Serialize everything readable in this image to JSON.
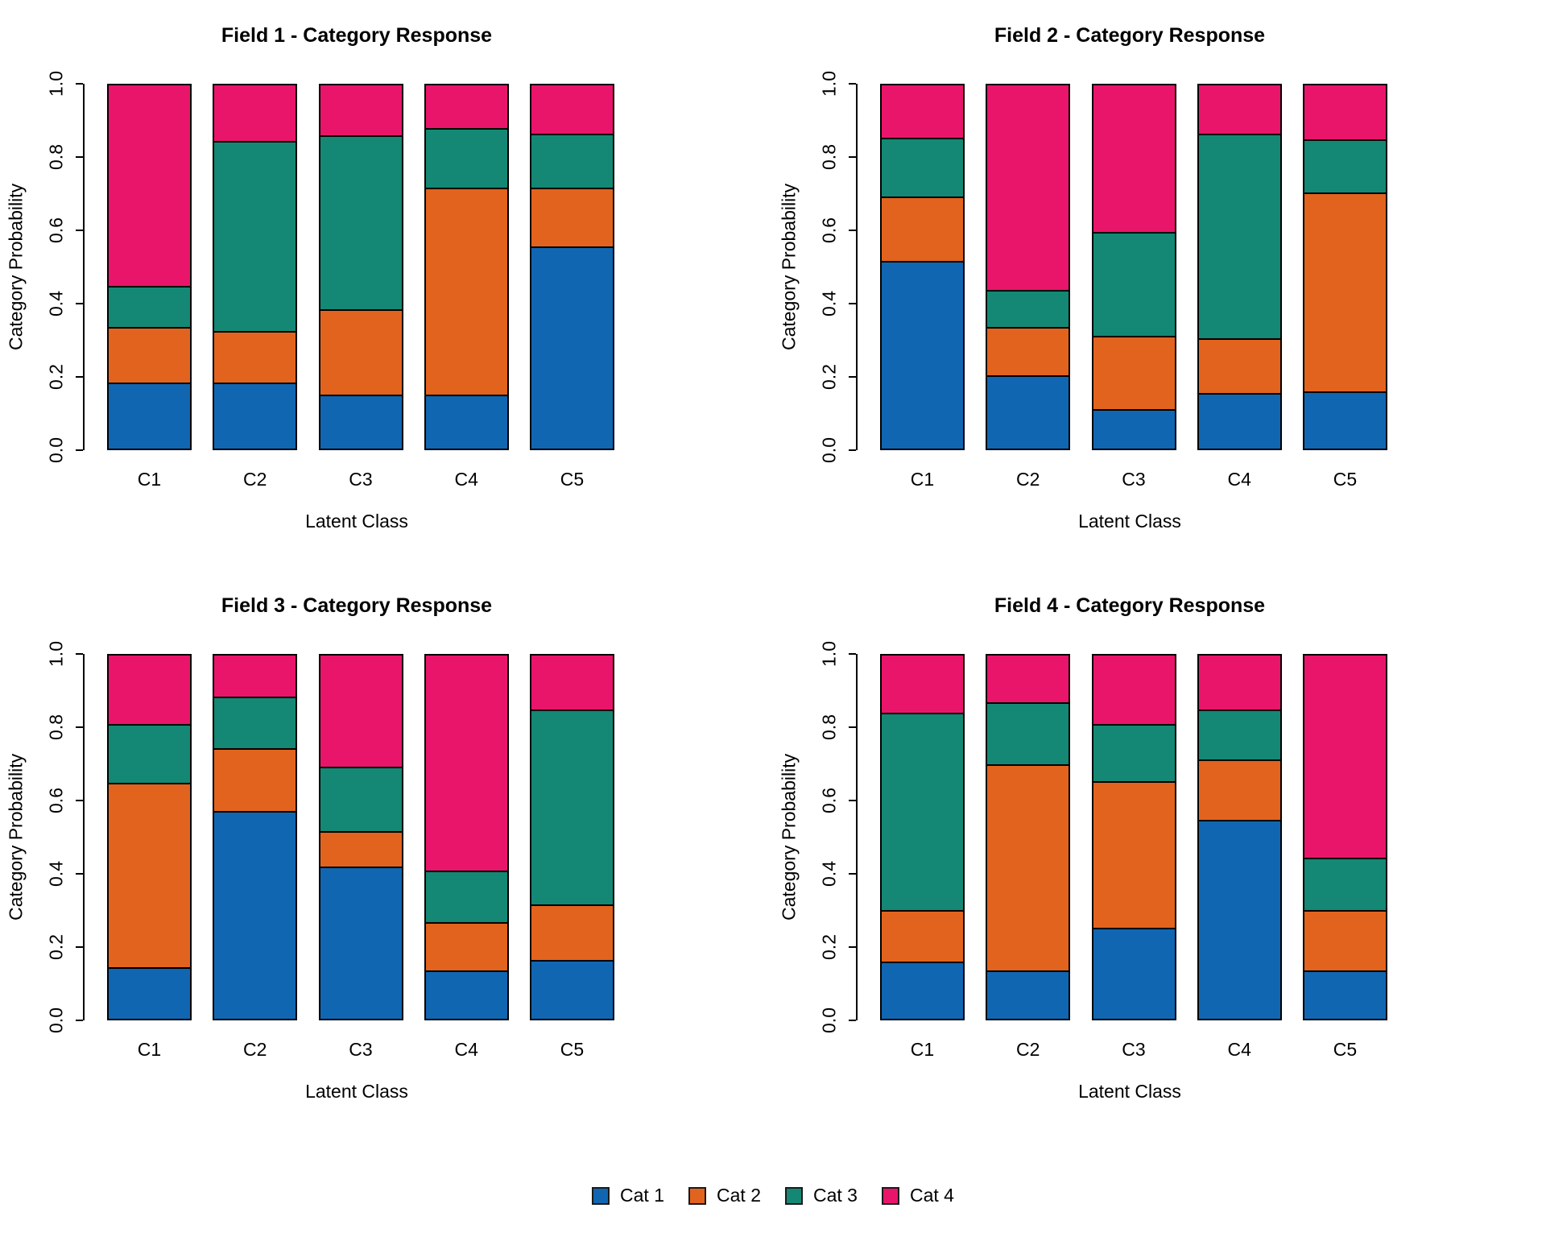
{
  "page": {
    "background": "#FFFFFF"
  },
  "palette": {
    "cat1": "#1166B1",
    "cat2": "#E2631E",
    "cat3": "#148874",
    "cat4": "#E9156B",
    "bar_border": "#000000"
  },
  "legend": {
    "items": [
      {
        "label": "Cat 1",
        "color": "#1166B1"
      },
      {
        "label": "Cat 2",
        "color": "#E2631E"
      },
      {
        "label": "Cat 3",
        "color": "#148874"
      },
      {
        "label": "Cat 4",
        "color": "#E9156B"
      }
    ]
  },
  "chart_data": [
    {
      "type": "bar",
      "stacked": true,
      "title": "Field 1 - Category Response",
      "xlabel": "Latent Class",
      "ylabel": "Category Probability",
      "ylim": [
        0,
        1
      ],
      "y_ticks": [
        "0.0",
        "0.2",
        "0.4",
        "0.6",
        "0.8",
        "1.0"
      ],
      "grid": false,
      "categories": [
        "C1",
        "C2",
        "C3",
        "C4",
        "C5"
      ],
      "series": [
        {
          "name": "Cat 1",
          "color": "#1166B1",
          "values": [
            0.18,
            0.18,
            0.145,
            0.145,
            0.56
          ]
        },
        {
          "name": "Cat 2",
          "color": "#E2631E",
          "values": [
            0.15,
            0.14,
            0.235,
            0.575,
            0.16
          ]
        },
        {
          "name": "Cat 3",
          "color": "#148874",
          "values": [
            0.11,
            0.525,
            0.48,
            0.16,
            0.145
          ]
        },
        {
          "name": "Cat 4",
          "color": "#E9156B",
          "values": [
            0.56,
            0.155,
            0.14,
            0.12,
            0.135
          ]
        }
      ]
    },
    {
      "type": "bar",
      "stacked": true,
      "title": "Field 2 - Category Response",
      "xlabel": "Latent Class",
      "ylabel": "Category Probability",
      "ylim": [
        0,
        1
      ],
      "y_ticks": [
        "0.0",
        "0.2",
        "0.4",
        "0.6",
        "0.8",
        "1.0"
      ],
      "grid": false,
      "categories": [
        "C1",
        "C2",
        "C3",
        "C4",
        "C5"
      ],
      "series": [
        {
          "name": "Cat 1",
          "color": "#1166B1",
          "values": [
            0.52,
            0.2,
            0.105,
            0.15,
            0.155
          ]
        },
        {
          "name": "Cat 2",
          "color": "#E2631E",
          "values": [
            0.175,
            0.13,
            0.2,
            0.15,
            0.55
          ]
        },
        {
          "name": "Cat 3",
          "color": "#148874",
          "values": [
            0.16,
            0.1,
            0.285,
            0.565,
            0.145
          ]
        },
        {
          "name": "Cat 4",
          "color": "#E9156B",
          "values": [
            0.145,
            0.57,
            0.41,
            0.135,
            0.15
          ]
        }
      ]
    },
    {
      "type": "bar",
      "stacked": true,
      "title": "Field 3 - Category Response",
      "xlabel": "Latent Class",
      "ylabel": "Category Probability",
      "ylim": [
        0,
        1
      ],
      "y_ticks": [
        "0.0",
        "0.2",
        "0.4",
        "0.6",
        "0.8",
        "1.0"
      ],
      "grid": false,
      "categories": [
        "C1",
        "C2",
        "C3",
        "C4",
        "C5"
      ],
      "series": [
        {
          "name": "Cat 1",
          "color": "#1166B1",
          "values": [
            0.14,
            0.575,
            0.42,
            0.13,
            0.16
          ]
        },
        {
          "name": "Cat 2",
          "color": "#E2631E",
          "values": [
            0.51,
            0.17,
            0.095,
            0.13,
            0.15
          ]
        },
        {
          "name": "Cat 3",
          "color": "#148874",
          "values": [
            0.16,
            0.14,
            0.175,
            0.14,
            0.54
          ]
        },
        {
          "name": "Cat 4",
          "color": "#E9156B",
          "values": [
            0.19,
            0.115,
            0.31,
            0.6,
            0.15
          ]
        }
      ]
    },
    {
      "type": "bar",
      "stacked": true,
      "title": "Field 4 - Category Response",
      "xlabel": "Latent Class",
      "ylabel": "Category Probability",
      "ylim": [
        0,
        1
      ],
      "y_ticks": [
        "0.0",
        "0.2",
        "0.4",
        "0.6",
        "0.8",
        "1.0"
      ],
      "grid": false,
      "categories": [
        "C1",
        "C2",
        "C3",
        "C4",
        "C5"
      ],
      "series": [
        {
          "name": "Cat 1",
          "color": "#1166B1",
          "values": [
            0.155,
            0.13,
            0.25,
            0.55,
            0.13
          ]
        },
        {
          "name": "Cat 2",
          "color": "#E2631E",
          "values": [
            0.14,
            0.57,
            0.405,
            0.165,
            0.165
          ]
        },
        {
          "name": "Cat 3",
          "color": "#148874",
          "values": [
            0.545,
            0.17,
            0.155,
            0.135,
            0.14
          ]
        },
        {
          "name": "Cat 4",
          "color": "#E9156B",
          "values": [
            0.16,
            0.13,
            0.19,
            0.15,
            0.565
          ]
        }
      ]
    }
  ]
}
